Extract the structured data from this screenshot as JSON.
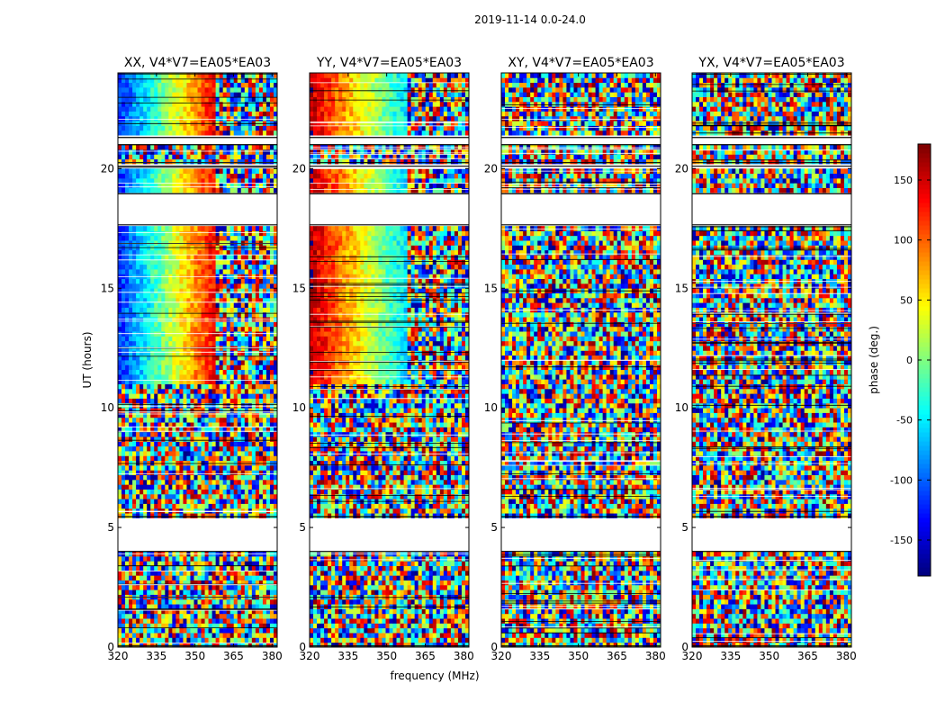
{
  "figure_title": "2019-11-14 0.0-24.0",
  "chart_data": {
    "type": "heatmap",
    "title": "2019-11-14 0.0-24.0",
    "xlabel": "frequency (MHz)",
    "ylabel": "UT (hours)",
    "xlim": [
      320,
      382
    ],
    "ylim": [
      0,
      24
    ],
    "xticks": [
      320,
      335,
      350,
      365,
      380
    ],
    "yticks": [
      0,
      5,
      10,
      15,
      20
    ],
    "colormap": "jet",
    "colorbar": {
      "label": "phase (deg.)",
      "range": [
        -180,
        180
      ],
      "ticks": [
        -150,
        -100,
        -50,
        0,
        50,
        100,
        150
      ]
    },
    "panels": [
      {
        "title": "XX, V4*V7=EA05*EA03",
        "phase_trend": "coherent"
      },
      {
        "title": "YY, V4*V7=EA05*EA03",
        "phase_trend": "coherent"
      },
      {
        "title": "XY, V4*V7=EA05*EA03",
        "phase_trend": "noise"
      },
      {
        "title": "YX, V4*V7=EA05*EA03",
        "phase_trend": "noise"
      }
    ],
    "blank_time_ranges": [
      [
        0.0,
        0.05
      ],
      [
        4.0,
        5.45
      ],
      [
        17.65,
        18.95
      ],
      [
        20.1,
        20.25
      ],
      [
        21.0,
        21.3
      ]
    ]
  }
}
